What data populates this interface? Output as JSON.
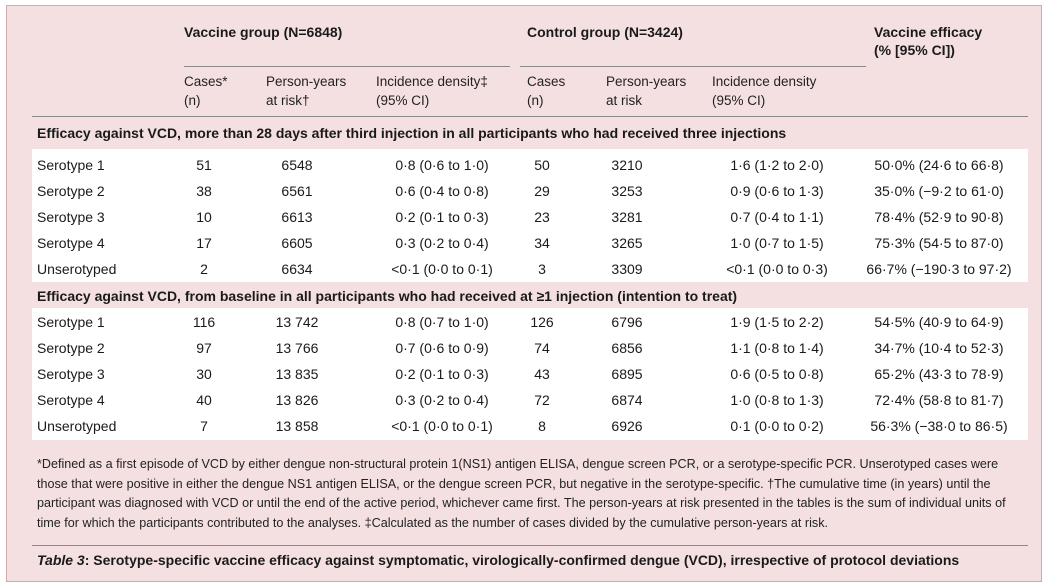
{
  "header": {
    "vaccine_group": "Vaccine group (N=6848)",
    "control_group": "Control group (N=3424)",
    "efficacy_line1": "Vaccine efficacy",
    "efficacy_line2": "(% [95% CI])"
  },
  "subheaders": {
    "cases_l1": "Cases*",
    "cases_l2": "(n)",
    "py_l1": "Person-years",
    "py_l2": "at risk†",
    "inc_l1": "Incidence density‡",
    "inc_l2": "(95% CI)",
    "c_cases_l1": "Cases",
    "c_cases_l2": "(n)",
    "c_py_l1": "Person-years",
    "c_py_l2": "at risk",
    "c_inc_l1": "Incidence density",
    "c_inc_l2": "(95% CI)"
  },
  "sections": [
    {
      "title": "Efficacy against VCD, more than 28 days after third injection in all participants who had received three injections",
      "rows": [
        [
          "Serotype 1",
          "51",
          "6548",
          "0·8 (0·6 to 1·0)",
          "50",
          "3210",
          "1·6 (1·2 to 2·0)",
          "50·0% (24·6 to 66·8)"
        ],
        [
          "Serotype 2",
          "38",
          "6561",
          "0·6 (0·4 to 0·8)",
          "29",
          "3253",
          "0·9 (0·6 to 1·3)",
          "35·0% (−9·2 to 61·0)"
        ],
        [
          "Serotype 3",
          "10",
          "6613",
          "0·2 (0·1 to 0·3)",
          "23",
          "3281",
          "0·7 (0·4 to 1·1)",
          "78·4% (52·9 to 90·8)"
        ],
        [
          "Serotype 4",
          "17",
          "6605",
          "0·3 (0·2 to 0·4)",
          "34",
          "3265",
          "1·0 (0·7 to 1·5)",
          "75·3% (54·5 to 87·0)"
        ],
        [
          "Unserotyped",
          "2",
          "6634",
          "<0·1 (0·0 to 0·1)",
          "3",
          "3309",
          "<0·1 (0·0 to 0·3)",
          "66·7% (−190·3 to 97·2)"
        ]
      ]
    },
    {
      "title": "Efficacy against VCD, from baseline in all participants who had received at ≥1 injection (intention to treat)",
      "rows": [
        [
          "Serotype 1",
          "116",
          "13 742",
          "0·8 (0·7 to 1·0)",
          "126",
          "6796",
          "1·9 (1·5 to 2·2)",
          "54·5% (40·9 to 64·9)"
        ],
        [
          "Serotype 2",
          "97",
          "13 766",
          "0·7 (0·6 to 0·9)",
          "74",
          "6856",
          "1·1 (0·8 to 1·4)",
          "34·7% (10·4 to 52·3)"
        ],
        [
          "Serotype 3",
          "30",
          "13 835",
          "0·2 (0·1 to 0·3)",
          "43",
          "6895",
          "0·6 (0·5 to 0·8)",
          "65·2% (43·3 to 78·9)"
        ],
        [
          "Serotype 4",
          "40",
          "13 826",
          "0·3 (0·2 to 0·4)",
          "72",
          "6874",
          "1·0 (0·8 to 1·3)",
          "72·4% (58·8 to 81·7)"
        ],
        [
          "Unserotyped",
          "7",
          "13 858",
          "<0·1 (0·0 to 0·1)",
          "8",
          "6926",
          "0·1 (0·0 to 0·2)",
          "56·3% (−38·0 to 86·5)"
        ]
      ]
    }
  ],
  "footnote": "*Defined as a first episode of VCD by either dengue non-structural protein 1(NS1) antigen ELISA, dengue screen PCR, or a serotype-specific PCR. Unserotyped cases were those that were positive in either the dengue NS1 antigen ELISA, or the dengue screen PCR, but negative in the serotype-specific. †The cumulative time (in years) until the participant was diagnosed with VCD or until the end of the active period, whichever came first. The person-years at risk presented in the tables is the sum of individual units of time for which the participants contributed to the analyses. ‡Calculated as the number of cases divided by the cumulative person-years at risk.",
  "caption": {
    "label": "Table 3",
    "text": ": Serotype-specific vaccine efficacy against symptomatic, virologically-confirmed dengue (VCD), irrespective of protocol deviations"
  }
}
